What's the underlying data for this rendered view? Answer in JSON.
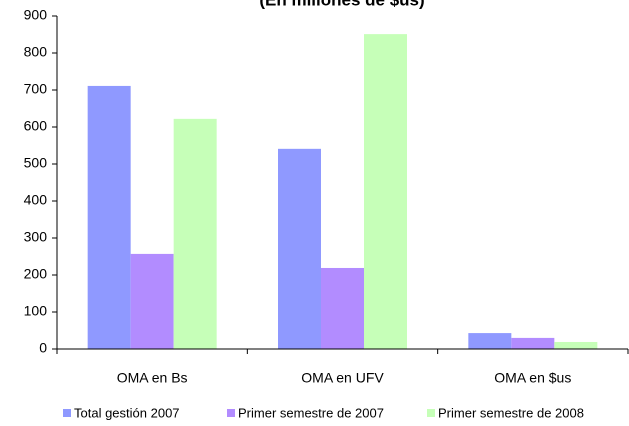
{
  "chart_data": {
    "type": "bar",
    "title": "(En millones de $us)",
    "categories": [
      "OMA en Bs",
      "OMA en UFV",
      "OMA en $us"
    ],
    "series": [
      {
        "name": "Total gestión 2007",
        "color": "#8f99ff",
        "values": [
          711,
          541,
          43
        ]
      },
      {
        "name": "Primer semestre de 2007",
        "color": "#b28cff",
        "values": [
          257,
          219,
          30
        ]
      },
      {
        "name": "Primer semestre de 2008",
        "color": "#c6ffb8",
        "values": [
          622,
          851,
          19
        ]
      }
    ],
    "ylim": [
      0,
      900
    ],
    "yticks": [
      0,
      100,
      200,
      300,
      400,
      500,
      600,
      700,
      800,
      900
    ]
  }
}
